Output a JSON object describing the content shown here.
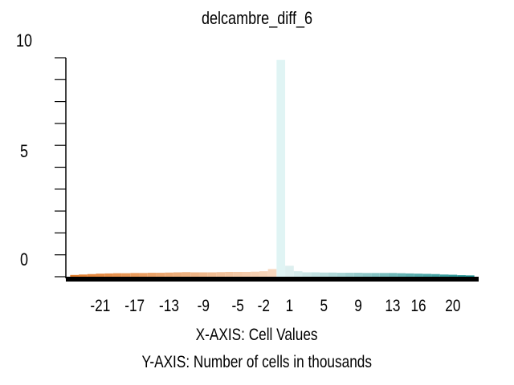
{
  "chart_data": {
    "type": "bar",
    "title": "delcambre_diff_6",
    "y_tick_labels": [
      "10",
      "5",
      "0"
    ],
    "ylim": [
      0,
      10
    ],
    "x_tick_labels": [
      "-21",
      "-17",
      "-13",
      "-9",
      "-5",
      "-2",
      "1",
      "5",
      "9",
      "13",
      "16",
      "20"
    ],
    "xlim": [
      -25,
      23
    ],
    "caption_x": "X-AXIS: Cell Values",
    "caption_y": "Y-AXIS: Number of cells in thousands",
    "series_colors": {
      "negative": "#e07b2a",
      "positive": "#1f8f8f",
      "center": "#e0f4f4"
    },
    "bins": [
      {
        "x": -24,
        "value": 0.08
      },
      {
        "x": -23,
        "value": 0.1
      },
      {
        "x": -22,
        "value": 0.12
      },
      {
        "x": -21,
        "value": 0.14
      },
      {
        "x": -20,
        "value": 0.15
      },
      {
        "x": -19,
        "value": 0.16
      },
      {
        "x": -18,
        "value": 0.16
      },
      {
        "x": -17,
        "value": 0.17
      },
      {
        "x": -16,
        "value": 0.17
      },
      {
        "x": -15,
        "value": 0.18
      },
      {
        "x": -14,
        "value": 0.18
      },
      {
        "x": -13,
        "value": 0.19
      },
      {
        "x": -12,
        "value": 0.2
      },
      {
        "x": -11,
        "value": 0.21
      },
      {
        "x": -10,
        "value": 0.2
      },
      {
        "x": -9,
        "value": 0.2
      },
      {
        "x": -8,
        "value": 0.2
      },
      {
        "x": -7,
        "value": 0.21
      },
      {
        "x": -6,
        "value": 0.22
      },
      {
        "x": -5,
        "value": 0.22
      },
      {
        "x": -4,
        "value": 0.22
      },
      {
        "x": -3,
        "value": 0.23
      },
      {
        "x": -2,
        "value": 0.25
      },
      {
        "x": -1,
        "value": 0.35
      },
      {
        "x": 0,
        "value": 9.9
      },
      {
        "x": 1,
        "value": 0.5
      },
      {
        "x": 2,
        "value": 0.25
      },
      {
        "x": 3,
        "value": 0.2
      },
      {
        "x": 4,
        "value": 0.2
      },
      {
        "x": 5,
        "value": 0.19
      },
      {
        "x": 6,
        "value": 0.19
      },
      {
        "x": 7,
        "value": 0.18
      },
      {
        "x": 8,
        "value": 0.18
      },
      {
        "x": 9,
        "value": 0.18
      },
      {
        "x": 10,
        "value": 0.17
      },
      {
        "x": 11,
        "value": 0.17
      },
      {
        "x": 12,
        "value": 0.17
      },
      {
        "x": 13,
        "value": 0.17
      },
      {
        "x": 14,
        "value": 0.16
      },
      {
        "x": 15,
        "value": 0.15
      },
      {
        "x": 16,
        "value": 0.14
      },
      {
        "x": 17,
        "value": 0.13
      },
      {
        "x": 18,
        "value": 0.12
      },
      {
        "x": 19,
        "value": 0.1
      },
      {
        "x": 20,
        "value": 0.09
      },
      {
        "x": 21,
        "value": 0.07
      },
      {
        "x": 22,
        "value": 0.06
      }
    ]
  }
}
